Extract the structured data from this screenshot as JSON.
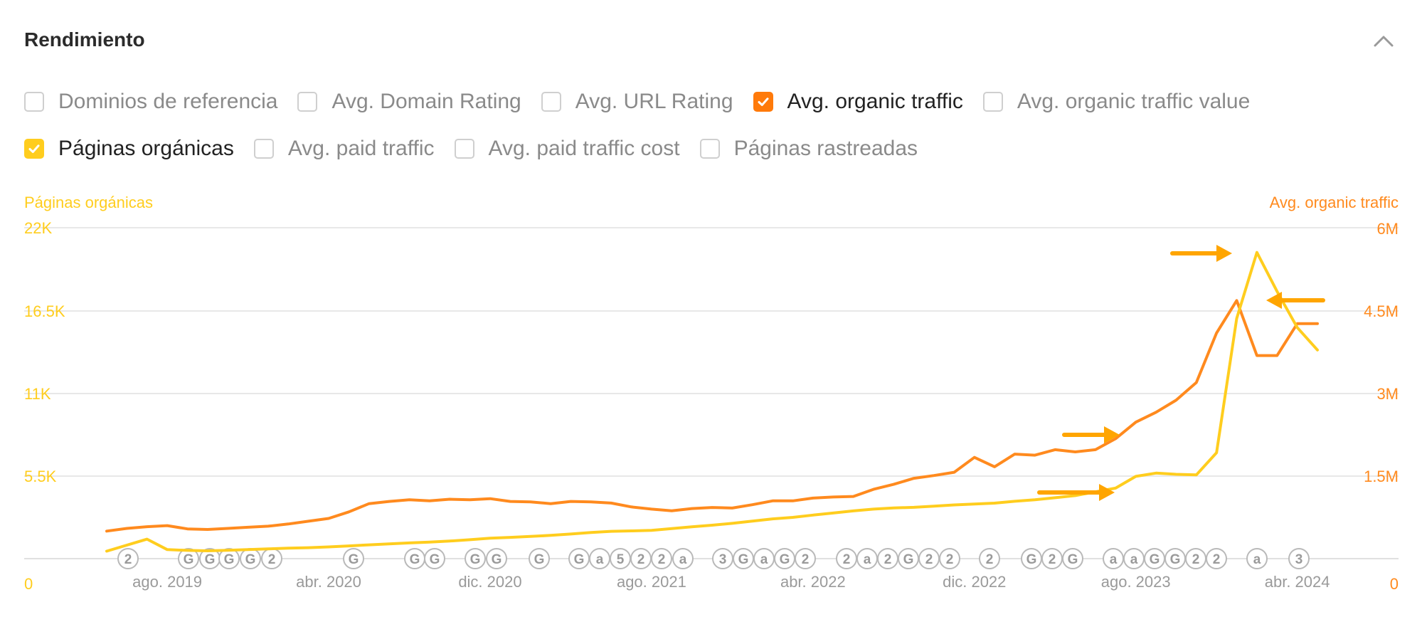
{
  "panel": {
    "title": "Rendimiento"
  },
  "filters": {
    "row1": [
      {
        "label": "Dominios de referencia",
        "checked": false,
        "color": ""
      },
      {
        "label": "Avg. Domain Rating",
        "checked": false,
        "color": ""
      },
      {
        "label": "Avg. URL Rating",
        "checked": false,
        "color": ""
      },
      {
        "label": "Avg. organic traffic",
        "checked": true,
        "color": "#ff7a0a"
      },
      {
        "label": "Avg. organic traffic value",
        "checked": false,
        "color": ""
      }
    ],
    "row2": [
      {
        "label": "Páginas orgánicas",
        "checked": true,
        "color": "#ffcd1e"
      },
      {
        "label": "Avg. paid traffic",
        "checked": false,
        "color": ""
      },
      {
        "label": "Avg. paid traffic cost",
        "checked": false,
        "color": ""
      },
      {
        "label": "Páginas rastreadas",
        "checked": false,
        "color": ""
      }
    ]
  },
  "chart_data": {
    "type": "line",
    "left_axis_title": "Páginas orgánicas",
    "right_axis_title": "Avg. organic traffic",
    "left_ticks": [
      "0",
      "5.5K",
      "11K",
      "16.5K",
      "22K"
    ],
    "right_ticks": [
      "0",
      "1.5M",
      "3M",
      "4.5M",
      "6M"
    ],
    "x_labels": [
      "ago. 2019",
      "abr. 2020",
      "dic. 2020",
      "ago. 2021",
      "abr. 2022",
      "dic. 2022",
      "ago. 2023",
      "abr. 2024"
    ],
    "ylim_left": [
      0,
      22000
    ],
    "ylim_right": [
      0,
      6000000
    ],
    "grid": true,
    "colors": {
      "left": "#ffcd1e",
      "right": "#ff8a1e",
      "arrow": "#ffa500"
    },
    "series": [
      {
        "name": "Avg. organic traffic",
        "axis": "right",
        "color": "#ff8a1e",
        "x": [
          "2019-05",
          "2019-06",
          "2019-07",
          "2019-08",
          "2019-09",
          "2019-10",
          "2019-11",
          "2019-12",
          "2020-01",
          "2020-02",
          "2020-03",
          "2020-04",
          "2020-05",
          "2020-06",
          "2020-07",
          "2020-08",
          "2020-09",
          "2020-10",
          "2020-11",
          "2020-12",
          "2021-01",
          "2021-02",
          "2021-03",
          "2021-04",
          "2021-05",
          "2021-06",
          "2021-07",
          "2021-08",
          "2021-09",
          "2021-10",
          "2021-11",
          "2021-12",
          "2022-01",
          "2022-02",
          "2022-03",
          "2022-04",
          "2022-05",
          "2022-06",
          "2022-07",
          "2022-08",
          "2022-09",
          "2022-10",
          "2022-11",
          "2022-12",
          "2023-01",
          "2023-02",
          "2023-03",
          "2023-04",
          "2023-05",
          "2023-06",
          "2023-07",
          "2023-08",
          "2023-09",
          "2023-10",
          "2023-11",
          "2023-12",
          "2024-01",
          "2024-02",
          "2024-03",
          "2024-04",
          "2024-05"
        ],
        "values": [
          500000,
          550000,
          580000,
          600000,
          540000,
          530000,
          550000,
          570000,
          590000,
          630000,
          680000,
          730000,
          850000,
          1000000,
          1040000,
          1070000,
          1050000,
          1080000,
          1070000,
          1090000,
          1040000,
          1030000,
          1000000,
          1040000,
          1030000,
          1010000,
          940000,
          900000,
          870000,
          910000,
          930000,
          920000,
          980000,
          1050000,
          1050000,
          1100000,
          1120000,
          1130000,
          1260000,
          1350000,
          1460000,
          1510000,
          1570000,
          1840000,
          1670000,
          1900000,
          1880000,
          1980000,
          1940000,
          1980000,
          2180000,
          2480000,
          2660000,
          2880000,
          3200000,
          4100000,
          4690000,
          3690000,
          3690000,
          4270000,
          4270000
        ],
        "peak": "2024-01"
      },
      {
        "name": "Páginas orgánicas",
        "axis": "left",
        "color": "#ffcd1e",
        "x": [
          "2019-05",
          "2019-06",
          "2019-07",
          "2019-08",
          "2019-09",
          "2019-10",
          "2019-11",
          "2019-12",
          "2020-01",
          "2020-02",
          "2020-03",
          "2020-04",
          "2020-05",
          "2020-06",
          "2020-07",
          "2020-08",
          "2020-09",
          "2020-10",
          "2020-11",
          "2020-12",
          "2021-01",
          "2021-02",
          "2021-03",
          "2021-04",
          "2021-05",
          "2021-06",
          "2021-07",
          "2021-08",
          "2021-09",
          "2021-10",
          "2021-11",
          "2021-12",
          "2022-01",
          "2022-02",
          "2022-03",
          "2022-04",
          "2022-05",
          "2022-06",
          "2022-07",
          "2022-08",
          "2022-09",
          "2022-10",
          "2022-11",
          "2022-12",
          "2023-01",
          "2023-02",
          "2023-03",
          "2023-04",
          "2023-05",
          "2023-06",
          "2023-07",
          "2023-08",
          "2023-09",
          "2023-10",
          "2023-11",
          "2023-12",
          "2024-01",
          "2024-02",
          "2024-03",
          "2024-04",
          "2024-05"
        ],
        "values": [
          500,
          900,
          1300,
          600,
          550,
          520,
          560,
          600,
          650,
          700,
          730,
          780,
          850,
          920,
          980,
          1050,
          1100,
          1170,
          1260,
          1360,
          1420,
          1480,
          1550,
          1640,
          1740,
          1820,
          1850,
          1880,
          2000,
          2120,
          2230,
          2350,
          2500,
          2650,
          2750,
          2900,
          3040,
          3180,
          3300,
          3380,
          3420,
          3500,
          3580,
          3640,
          3700,
          3820,
          3920,
          4060,
          4200,
          4450,
          4700,
          5480,
          5700,
          5620,
          5580,
          7060,
          16000,
          20400,
          17800,
          15400,
          13900
        ]
      }
    ],
    "event_badges_visible": [
      "2",
      "G",
      "G",
      "G",
      "G",
      "2",
      "G",
      "G",
      "G",
      "G",
      "G",
      "G",
      "G",
      "a",
      "5",
      "2",
      "2",
      "a",
      "3",
      "G",
      "a",
      "G",
      "2",
      "2",
      "a",
      "2",
      "G",
      "2",
      "2",
      "2",
      "G",
      "2",
      "G",
      "a",
      "a",
      "G",
      "G",
      "2",
      "2",
      "a",
      "3"
    ]
  }
}
